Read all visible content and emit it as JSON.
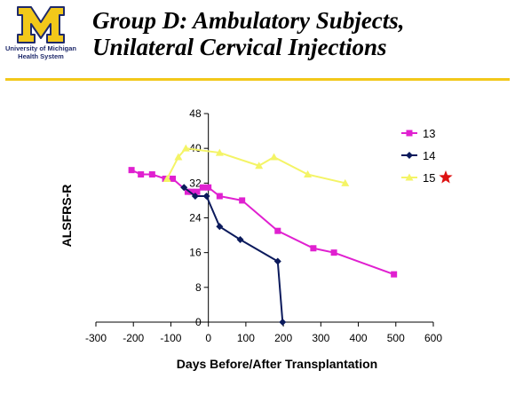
{
  "logo": {
    "line1": "University of Michigan",
    "line2": "Health System",
    "maize": "#f2c81a",
    "blue": "#1f2a6b"
  },
  "header": {
    "title_line1": "Group D: Ambulatory Subjects,",
    "title_line2": "Unilateral Cervical Injections"
  },
  "rule_color": "#f2c81a",
  "chart_data": {
    "type": "line",
    "xlabel": "Days Before/After Transplantation",
    "ylabel": "ALSFRS-R",
    "xlim": [
      -300,
      600
    ],
    "ylim": [
      0,
      48
    ],
    "xticks": [
      -300,
      -200,
      -100,
      0,
      100,
      200,
      300,
      400,
      500,
      600
    ],
    "yticks": [
      0,
      8,
      16,
      24,
      32,
      40,
      48
    ],
    "grid": false,
    "legend_position": "top-right",
    "series": [
      {
        "name": "13",
        "color": "#e020d0",
        "marker": "square",
        "x": [
          -205,
          -180,
          -150,
          -115,
          -95,
          -55,
          -45,
          -30,
          -15,
          0,
          30,
          90,
          185,
          280,
          335,
          495
        ],
        "y": [
          35,
          34,
          34,
          33,
          33,
          30,
          30,
          30,
          31,
          31,
          29,
          28,
          21,
          17,
          16,
          11
        ]
      },
      {
        "name": "14",
        "color": "#0b1a5c",
        "marker": "diamond",
        "x": [
          -65,
          -35,
          -5,
          30,
          85,
          185,
          198
        ],
        "y": [
          31,
          29,
          29,
          22,
          19,
          14,
          0
        ]
      },
      {
        "name": "15",
        "color": "#f4f466",
        "marker": "triangle",
        "x": [
          -110,
          -80,
          -60,
          30,
          135,
          175,
          265,
          365
        ],
        "y": [
          33,
          38,
          40,
          39,
          36,
          38,
          34,
          32
        ]
      }
    ],
    "annotation": {
      "type": "star",
      "series": "15",
      "color": "#dd1111"
    }
  }
}
